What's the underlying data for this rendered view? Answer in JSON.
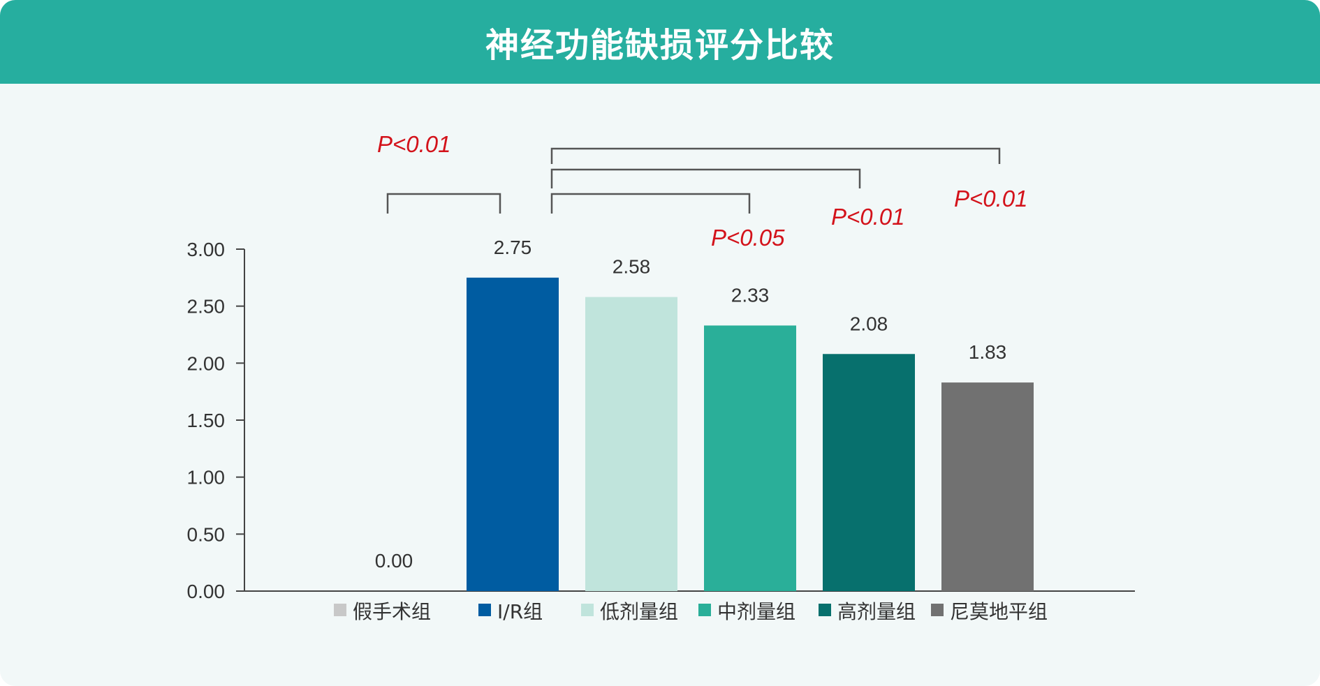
{
  "header": {
    "title": "神经功能缺损评分比较"
  },
  "chart_data": {
    "type": "bar",
    "categories": [
      "假手术组",
      "I/R组",
      "低剂量组",
      "中剂量组",
      "高剂量组",
      "尼莫地平组"
    ],
    "values": [
      0.0,
      2.75,
      2.58,
      2.33,
      2.08,
      1.83
    ],
    "value_labels": [
      "0.00",
      "2.75",
      "2.58",
      "2.33",
      "2.08",
      "1.83"
    ],
    "colors": [
      "#c8c8c8",
      "#005ca1",
      "#c0e4dc",
      "#2aaf99",
      "#07706d",
      "#717171"
    ],
    "ylim": [
      0,
      3
    ],
    "yticks": [
      "0.00",
      "0.50",
      "1.00",
      "1.50",
      "2.00",
      "2.50",
      "3.00"
    ],
    "legend_position": "bottom",
    "grid": false,
    "annotations": [
      {
        "from": 0,
        "to": 1,
        "text": "P<0.01"
      },
      {
        "from": 1,
        "to": 3,
        "text": "P<0.05"
      },
      {
        "from": 1,
        "to": 4,
        "text": "P<0.01"
      },
      {
        "from": 1,
        "to": 5,
        "text": "P<0.01"
      }
    ]
  }
}
